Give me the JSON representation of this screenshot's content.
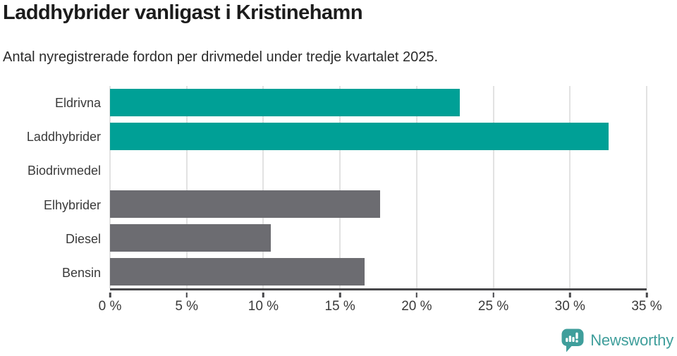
{
  "chart_data": {
    "type": "bar",
    "orientation": "horizontal",
    "title": "Laddhybrider vanligast i Kristinehamn",
    "subtitle": "Antal nyregistrerade fordon per drivmedel under tredje kvartalet 2025.",
    "categories": [
      "Eldrivna",
      "Laddhybrider",
      "Biodrivmedel",
      "Elhybrider",
      "Diesel",
      "Bensin"
    ],
    "values": [
      22.8,
      32.5,
      0,
      17.6,
      10.5,
      16.6
    ],
    "unit": "%",
    "xlabel": "",
    "ylabel": "",
    "xlim": [
      0,
      35
    ],
    "x_ticks": [
      0,
      5,
      10,
      15,
      20,
      25,
      30,
      35
    ],
    "x_tick_labels": [
      "0 %",
      "5 %",
      "10 %",
      "15 %",
      "20 %",
      "25 %",
      "30 %",
      "35 %"
    ],
    "bar_colors": [
      "#00a096",
      "#00a096",
      "#6c6c71",
      "#6c6c71",
      "#6c6c71",
      "#6c6c71"
    ],
    "highlight_color": "#00a096",
    "default_color": "#6c6c71",
    "gridline_color": "#e2e2e2",
    "axis_color": "#47474a",
    "grid": "vertical",
    "legend": "none"
  },
  "footer": {
    "brand": "Newsworthy",
    "brand_color": "#3f9e9b",
    "logo_icon": "newsworthy-speech-bubble-barchart-icon"
  }
}
